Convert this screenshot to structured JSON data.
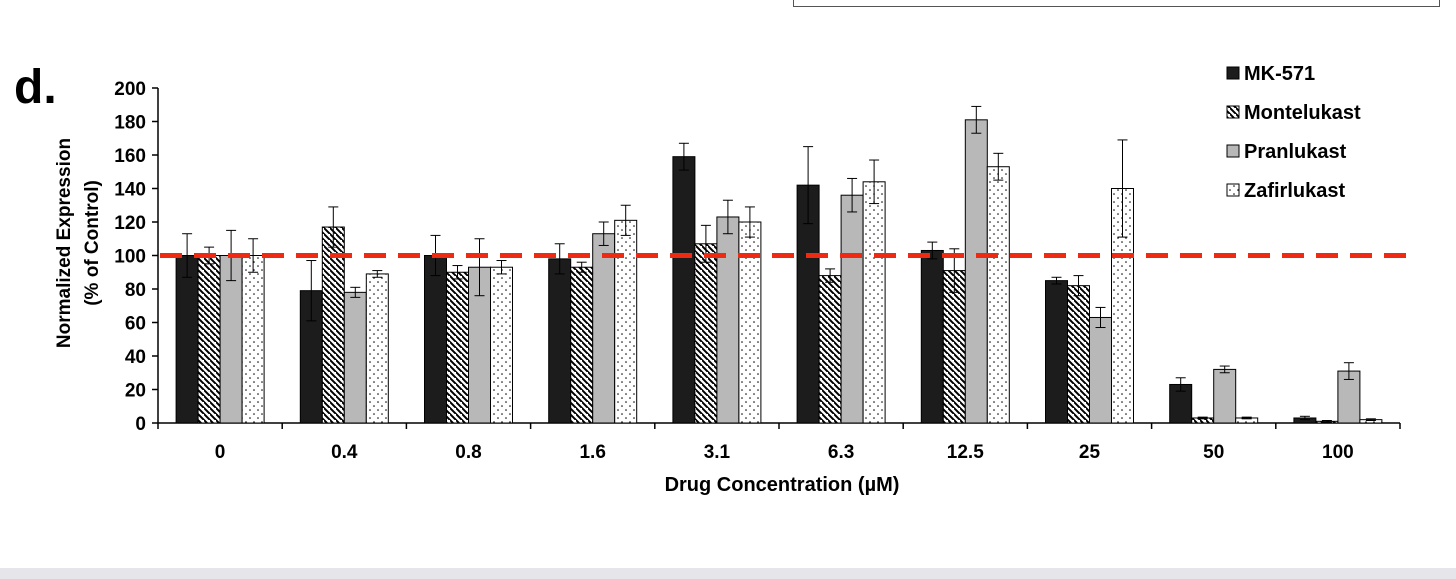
{
  "panel_label": "d.",
  "chart_data": {
    "type": "bar",
    "title": "",
    "xlabel": "Drug Concentration (µM)",
    "ylabel_lines": [
      "Normalized Expression",
      "(% of Control)"
    ],
    "ylim": [
      0,
      200
    ],
    "yticks": [
      0,
      20,
      40,
      60,
      80,
      100,
      120,
      140,
      160,
      180,
      200
    ],
    "categories": [
      "0",
      "0.4",
      "0.8",
      "1.6",
      "3.1",
      "6.3",
      "12.5",
      "25",
      "50",
      "100"
    ],
    "series": [
      {
        "name": "MK-571",
        "pattern": "solid",
        "values": [
          100,
          79,
          100,
          98,
          159,
          142,
          103,
          85,
          23,
          3
        ],
        "errors": [
          13,
          18,
          12,
          9,
          8,
          23,
          5,
          2,
          4,
          1
        ]
      },
      {
        "name": "Montelukast",
        "pattern": "diagonal",
        "values": [
          100,
          117,
          90,
          93,
          107,
          88,
          91,
          82,
          3,
          1
        ],
        "errors": [
          5,
          12,
          4,
          3,
          11,
          4,
          13,
          6,
          0.5,
          0.5
        ]
      },
      {
        "name": "Pranlukast",
        "pattern": "gray",
        "values": [
          100,
          78,
          93,
          113,
          123,
          136,
          181,
          63,
          32,
          31
        ],
        "errors": [
          15,
          3,
          17,
          7,
          10,
          10,
          8,
          6,
          2,
          5
        ]
      },
      {
        "name": "Zafirlukast",
        "pattern": "dotted",
        "values": [
          100,
          89,
          93,
          121,
          120,
          144,
          153,
          140,
          3,
          2
        ],
        "errors": [
          10,
          2,
          4,
          9,
          9,
          13,
          8,
          29,
          0.5,
          0.5
        ]
      }
    ],
    "reference_line": {
      "value": 100,
      "color": "#ee2a12",
      "style": "dashed"
    },
    "legend_position": "top-right"
  }
}
